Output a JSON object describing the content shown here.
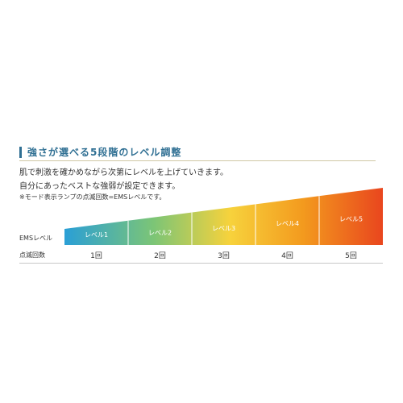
{
  "heading": "強さが選べる5段階のレベル調整",
  "description": [
    "肌で刺激を確かめながら次第にレベルを上げていきます。",
    "自分にあったベストな強弱が設定できます。"
  ],
  "note": "※モード表示ランプの点滅回数=EMSレベルです。",
  "row_labels": {
    "ems": "EMSレベル",
    "blink": "点滅回数"
  },
  "levels": [
    {
      "label": "レベル1",
      "blink": "1回",
      "strength": 1
    },
    {
      "label": "レベル2",
      "blink": "2回",
      "strength": 2
    },
    {
      "label": "レベル3",
      "blink": "3回",
      "strength": 3
    },
    {
      "label": "レベル4",
      "blink": "4回",
      "strength": 4
    },
    {
      "label": "レベル5",
      "blink": "5回",
      "strength": 5
    }
  ],
  "colors": {
    "heading": "#2f6f93",
    "gradient_start": "#2a9fd6",
    "gradient_mid1": "#7cc576",
    "gradient_mid2": "#f7d23c",
    "gradient_mid3": "#f39a1e",
    "gradient_end": "#e9461e",
    "level_text": "#ffffff"
  }
}
